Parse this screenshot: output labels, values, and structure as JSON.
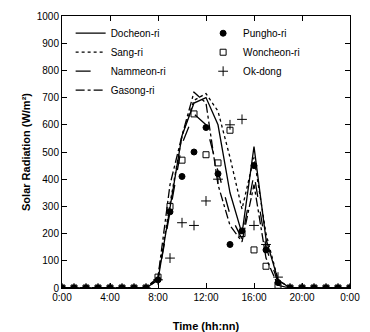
{
  "chart_data": {
    "type": "line",
    "x_label": "Time (hh:nn)",
    "y_label": "Solar Radiation (W/m²)",
    "x": [
      0,
      1,
      2,
      3,
      4,
      5,
      6,
      7,
      8,
      9,
      10,
      11,
      12,
      13,
      14,
      15,
      16,
      17,
      18,
      19,
      20,
      21,
      22,
      23,
      24
    ],
    "series": [
      {
        "name": "Docheon-ri",
        "color": "#000000",
        "line_style": "solid",
        "values": [
          0,
          0,
          0,
          0,
          0,
          0,
          0,
          0,
          30,
          300,
          560,
          680,
          700,
          600,
          350,
          200,
          520,
          180,
          30,
          0,
          0,
          0,
          0,
          0,
          0
        ]
      },
      {
        "name": "Pungho-ri",
        "color": "#000000",
        "marker": "circle",
        "values": [
          0,
          0,
          0,
          0,
          0,
          0,
          0,
          0,
          30,
          280,
          410,
          500,
          590,
          420,
          160,
          210,
          450,
          140,
          20,
          0,
          0,
          0,
          0,
          0,
          0
        ]
      },
      {
        "name": "Sang-ri",
        "color": "#000000",
        "line_style": "dot",
        "values": [
          0,
          0,
          0,
          0,
          0,
          0,
          0,
          0,
          40,
          310,
          560,
          690,
          715,
          650,
          480,
          290,
          480,
          200,
          30,
          0,
          0,
          0,
          0,
          0,
          0
        ]
      },
      {
        "name": "Woncheon-ri",
        "color": "#000000",
        "marker": "square-open",
        "values": [
          0,
          0,
          0,
          0,
          0,
          0,
          0,
          0,
          40,
          300,
          470,
          640,
          490,
          460,
          580,
          200,
          140,
          80,
          10,
          0,
          0,
          0,
          0,
          0,
          0
        ]
      },
      {
        "name": "Nammeon-ri",
        "color": "#000000",
        "line_style": "longdash",
        "values": [
          0,
          0,
          0,
          0,
          0,
          0,
          0,
          0,
          30,
          280,
          530,
          640,
          600,
          430,
          270,
          180,
          420,
          150,
          20,
          0,
          0,
          0,
          0,
          0,
          0
        ]
      },
      {
        "name": "Ok-dong",
        "color": "#000000",
        "marker": "cross-thin",
        "values": [
          0,
          0,
          0,
          0,
          0,
          0,
          0,
          0,
          30,
          110,
          240,
          230,
          320,
          400,
          600,
          620,
          230,
          160,
          40,
          0,
          0,
          0,
          0,
          0,
          0
        ]
      },
      {
        "name": "Gasong-ri",
        "color": "#000000",
        "line_style": "dashdot",
        "values": [
          0,
          0,
          0,
          0,
          0,
          0,
          0,
          0,
          40,
          380,
          560,
          720,
          680,
          380,
          230,
          170,
          380,
          110,
          10,
          0,
          0,
          0,
          0,
          0,
          0
        ]
      }
    ],
    "xlim": [
      0,
      24
    ],
    "xticks": [
      {
        "value": 0,
        "label": "0:00"
      },
      {
        "value": 4,
        "label": "4:00"
      },
      {
        "value": 8,
        "label": "8:00"
      },
      {
        "value": 12,
        "label": "12:00"
      },
      {
        "value": 16,
        "label": "16:00"
      },
      {
        "value": 20,
        "label": "20:00"
      },
      {
        "value": 24,
        "label": "0:00"
      }
    ],
    "ylim": [
      0,
      1000
    ],
    "yticks": [
      0,
      100,
      200,
      300,
      400,
      500,
      600,
      700,
      800,
      900,
      1000
    ],
    "grid": false,
    "legend": "top"
  }
}
